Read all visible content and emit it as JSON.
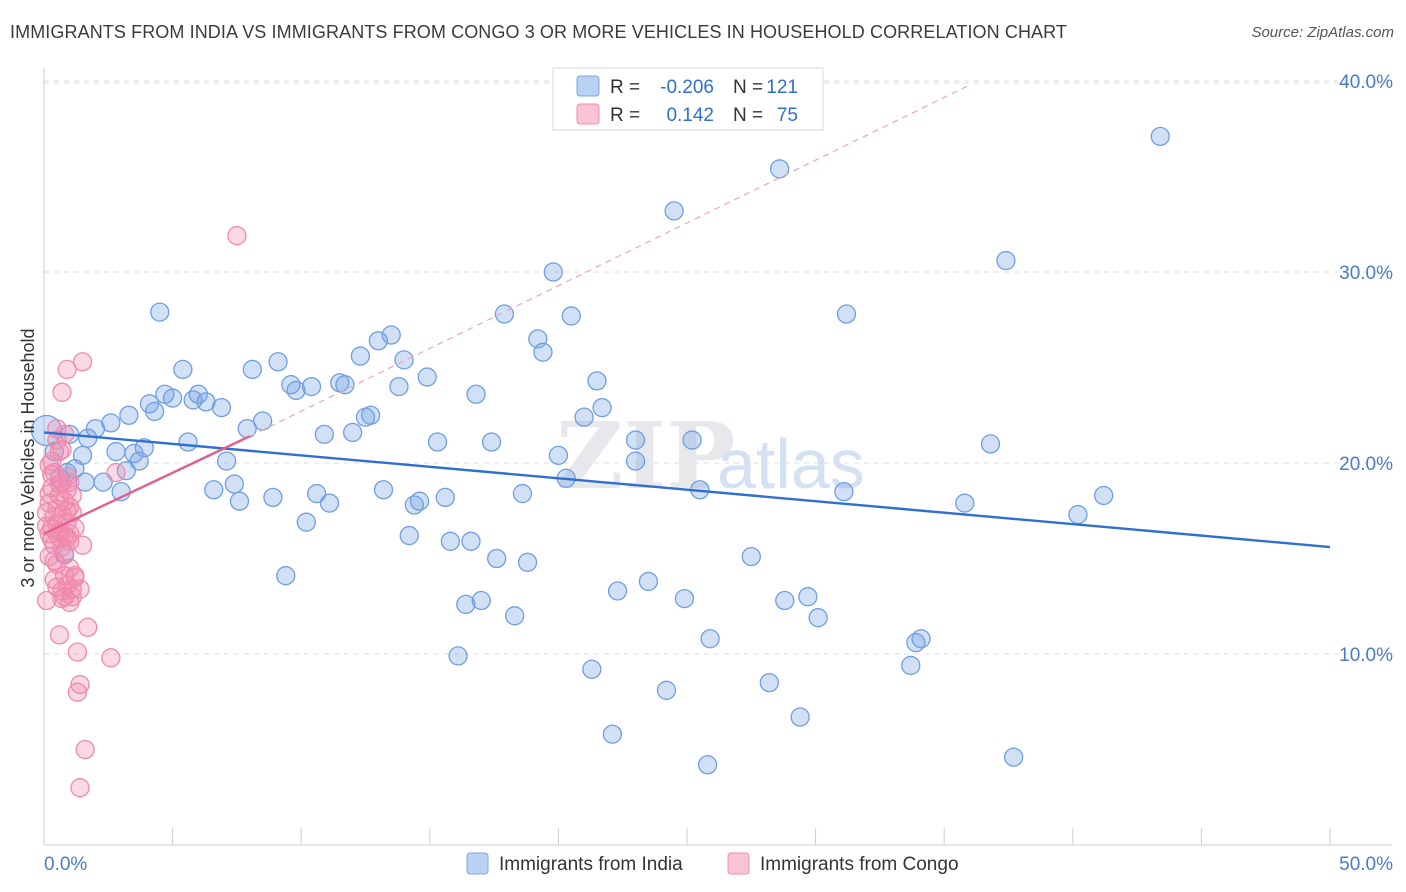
{
  "header": {
    "title": "IMMIGRANTS FROM INDIA VS IMMIGRANTS FROM CONGO 3 OR MORE VEHICLES IN HOUSEHOLD CORRELATION CHART",
    "source": "Source: ZipAtlas.com"
  },
  "watermark": {
    "zip": "ZIP",
    "atlas": "atlas"
  },
  "legend": {
    "r_label": "R =",
    "n_label": "N =",
    "series": [
      {
        "name": "Immigrants from India",
        "r": "-0.206",
        "n": "121",
        "color": "#7aa8e8",
        "fill": "#b9d1f3"
      },
      {
        "name": "Immigrants from Congo",
        "r": "0.142",
        "n": "75",
        "color": "#f08fb0",
        "fill": "#f8c3d5"
      }
    ]
  },
  "chart_data": {
    "type": "scatter",
    "ylabel": "3 or more Vehicles in Household",
    "xlim": [
      0,
      50
    ],
    "ylim": [
      0,
      40
    ],
    "x_ticks": [
      "0.0%",
      "50.0%"
    ],
    "y_ticks": [
      {
        "value": 10,
        "label": "10.0%"
      },
      {
        "value": 20,
        "label": "20.0%"
      },
      {
        "value": 30,
        "label": "30.0%"
      },
      {
        "value": 40,
        "label": "40.0%"
      }
    ],
    "series": [
      {
        "name": "Immigrants from India",
        "color": "#6f9fe0",
        "trend": {
          "x0": 0,
          "y0": 21.6,
          "x1": 50,
          "y1": 15.6,
          "color": "#2e6fcf"
        },
        "points": [
          [
            0.1,
            21.7
          ],
          [
            0.4,
            20.6
          ],
          [
            0.6,
            19.2
          ],
          [
            0.9,
            19.5
          ],
          [
            1.0,
            21.5
          ],
          [
            1.2,
            19.7
          ],
          [
            1.5,
            20.4
          ],
          [
            1.6,
            19.0
          ],
          [
            1.7,
            21.3
          ],
          [
            2.0,
            21.8
          ],
          [
            0.8,
            15.2
          ],
          [
            2.3,
            19.0
          ],
          [
            2.6,
            22.1
          ],
          [
            2.8,
            20.6
          ],
          [
            3.0,
            18.5
          ],
          [
            3.2,
            19.6
          ],
          [
            3.3,
            22.5
          ],
          [
            3.5,
            20.5
          ],
          [
            3.7,
            20.1
          ],
          [
            3.9,
            20.8
          ],
          [
            4.1,
            23.1
          ],
          [
            4.3,
            22.7
          ],
          [
            4.5,
            27.9
          ],
          [
            4.7,
            23.6
          ],
          [
            5.0,
            23.4
          ],
          [
            5.4,
            24.9
          ],
          [
            5.6,
            21.1
          ],
          [
            5.8,
            23.3
          ],
          [
            6.0,
            23.6
          ],
          [
            6.3,
            23.2
          ],
          [
            6.6,
            18.6
          ],
          [
            6.9,
            22.9
          ],
          [
            7.1,
            20.1
          ],
          [
            7.4,
            18.9
          ],
          [
            7.6,
            18.0
          ],
          [
            7.9,
            21.8
          ],
          [
            8.1,
            24.9
          ],
          [
            8.5,
            22.2
          ],
          [
            8.9,
            18.2
          ],
          [
            9.1,
            25.3
          ],
          [
            9.4,
            14.1
          ],
          [
            9.6,
            24.1
          ],
          [
            9.8,
            23.8
          ],
          [
            10.2,
            16.9
          ],
          [
            10.4,
            24.0
          ],
          [
            10.6,
            18.4
          ],
          [
            10.9,
            21.5
          ],
          [
            11.1,
            17.9
          ],
          [
            11.5,
            24.2
          ],
          [
            11.7,
            24.1
          ],
          [
            12.0,
            21.6
          ],
          [
            12.3,
            25.6
          ],
          [
            12.5,
            22.4
          ],
          [
            12.7,
            22.5
          ],
          [
            13.0,
            26.4
          ],
          [
            13.2,
            18.6
          ],
          [
            13.5,
            26.7
          ],
          [
            13.8,
            24.0
          ],
          [
            14.0,
            25.4
          ],
          [
            14.2,
            16.2
          ],
          [
            14.4,
            17.8
          ],
          [
            14.6,
            18.0
          ],
          [
            14.9,
            24.5
          ],
          [
            15.3,
            21.1
          ],
          [
            15.6,
            18.2
          ],
          [
            15.8,
            15.9
          ],
          [
            16.1,
            9.9
          ],
          [
            16.4,
            12.6
          ],
          [
            16.6,
            15.9
          ],
          [
            16.8,
            23.6
          ],
          [
            17.0,
            12.8
          ],
          [
            17.4,
            21.1
          ],
          [
            17.6,
            15.0
          ],
          [
            17.9,
            27.8
          ],
          [
            18.3,
            12.0
          ],
          [
            18.6,
            18.4
          ],
          [
            18.8,
            14.8
          ],
          [
            19.2,
            26.5
          ],
          [
            19.4,
            25.8
          ],
          [
            19.8,
            30.0
          ],
          [
            20.0,
            20.4
          ],
          [
            20.3,
            19.2
          ],
          [
            20.5,
            27.7
          ],
          [
            21.0,
            22.4
          ],
          [
            21.3,
            9.2
          ],
          [
            21.5,
            24.3
          ],
          [
            21.7,
            22.9
          ],
          [
            22.3,
            13.3
          ],
          [
            22.1,
            5.8
          ],
          [
            23.0,
            21.2
          ],
          [
            23.0,
            20.1
          ],
          [
            23.5,
            13.8
          ],
          [
            24.2,
            8.1
          ],
          [
            24.5,
            33.2
          ],
          [
            24.9,
            12.9
          ],
          [
            25.2,
            21.2
          ],
          [
            25.5,
            18.6
          ],
          [
            25.8,
            4.2
          ],
          [
            25.9,
            10.8
          ],
          [
            27.5,
            15.1
          ],
          [
            28.2,
            8.5
          ],
          [
            28.6,
            35.4
          ],
          [
            28.8,
            12.8
          ],
          [
            29.4,
            6.7
          ],
          [
            29.7,
            13.0
          ],
          [
            30.1,
            11.9
          ],
          [
            31.1,
            18.5
          ],
          [
            31.2,
            27.8
          ],
          [
            33.7,
            9.4
          ],
          [
            33.9,
            10.6
          ],
          [
            34.1,
            10.8
          ],
          [
            35.8,
            17.9
          ],
          [
            36.8,
            21.0
          ],
          [
            37.4,
            30.6
          ],
          [
            37.7,
            4.6
          ],
          [
            40.2,
            17.3
          ],
          [
            41.2,
            18.3
          ],
          [
            43.4,
            37.1
          ]
        ]
      },
      {
        "name": "Immigrants from Congo",
        "color": "#ef8aae",
        "trend": {
          "x0": 0,
          "y0": 16.3,
          "x1": 8.0,
          "y1": 21.4,
          "color": "#e0608e"
        },
        "trend_ext": {
          "x0": 8.0,
          "y0": 21.4,
          "x1": 36.0,
          "y1": 39.8,
          "color": "#eda4bf"
        },
        "points": [
          [
            0.1,
            16.7
          ],
          [
            0.1,
            17.4
          ],
          [
            0.1,
            12.8
          ],
          [
            0.2,
            15.1
          ],
          [
            0.2,
            16.3
          ],
          [
            0.2,
            17.9
          ],
          [
            0.3,
            18.7
          ],
          [
            0.3,
            16.0
          ],
          [
            0.3,
            19.4
          ],
          [
            0.4,
            15.7
          ],
          [
            0.4,
            19.5
          ],
          [
            0.4,
            17.2
          ],
          [
            0.5,
            21.8
          ],
          [
            0.5,
            21.2
          ],
          [
            0.5,
            16.8
          ],
          [
            0.5,
            14.7
          ],
          [
            0.6,
            18.3
          ],
          [
            0.6,
            16.1
          ],
          [
            0.6,
            20.6
          ],
          [
            0.6,
            11.0
          ],
          [
            0.7,
            23.7
          ],
          [
            0.7,
            19.0
          ],
          [
            0.7,
            17.3
          ],
          [
            0.7,
            15.6
          ],
          [
            0.7,
            13.3
          ],
          [
            0.8,
            21.5
          ],
          [
            0.8,
            18.0
          ],
          [
            0.8,
            16.2
          ],
          [
            0.8,
            14.1
          ],
          [
            0.8,
            13.0
          ],
          [
            0.9,
            24.9
          ],
          [
            0.9,
            19.3
          ],
          [
            0.9,
            18.6
          ],
          [
            0.9,
            17.5
          ],
          [
            0.9,
            16.9
          ],
          [
            0.9,
            13.6
          ],
          [
            1.0,
            19.0
          ],
          [
            1.0,
            17.7
          ],
          [
            1.0,
            16.3
          ],
          [
            1.0,
            14.5
          ],
          [
            1.0,
            12.7
          ],
          [
            1.1,
            18.3
          ],
          [
            1.1,
            17.4
          ],
          [
            1.1,
            13.4
          ],
          [
            1.2,
            16.6
          ],
          [
            1.2,
            14.1
          ],
          [
            1.3,
            10.1
          ],
          [
            1.3,
            8.0
          ],
          [
            1.4,
            8.4
          ],
          [
            1.4,
            13.4
          ],
          [
            1.5,
            25.3
          ],
          [
            1.5,
            15.7
          ],
          [
            1.6,
            5.0
          ],
          [
            1.7,
            11.4
          ],
          [
            1.4,
            3.0
          ],
          [
            2.6,
            9.8
          ],
          [
            2.8,
            19.5
          ],
          [
            7.5,
            31.9
          ],
          [
            0.2,
            18.4
          ],
          [
            0.3,
            16.6
          ],
          [
            0.4,
            13.9
          ],
          [
            0.5,
            17.6
          ],
          [
            0.6,
            16.4
          ],
          [
            0.7,
            12.9
          ],
          [
            0.8,
            15.3
          ],
          [
            0.9,
            16.1
          ],
          [
            1.0,
            15.9
          ],
          [
            1.1,
            13.0
          ],
          [
            1.2,
            14.0
          ],
          [
            0.2,
            19.9
          ],
          [
            0.4,
            14.9
          ],
          [
            0.6,
            18.9
          ],
          [
            0.3,
            20.1
          ],
          [
            0.5,
            13.5
          ],
          [
            0.7,
            20.7
          ]
        ]
      }
    ]
  }
}
